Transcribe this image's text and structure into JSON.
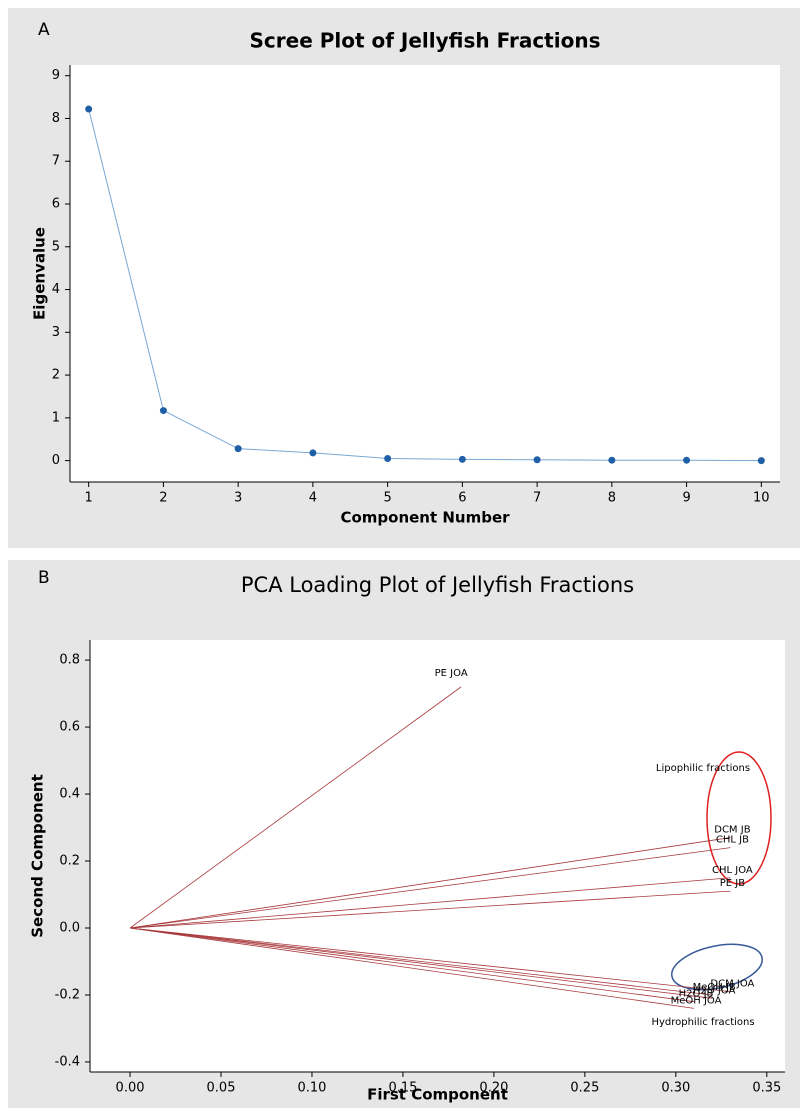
{
  "chart_data": [
    {
      "type": "line",
      "label": "A",
      "title": "Scree Plot of Jellyfish Fractions",
      "x_label": "Component Number",
      "y_label": "Eigenvalue",
      "x": [
        1,
        2,
        3,
        4,
        5,
        6,
        7,
        8,
        9,
        10
      ],
      "values": [
        8.22,
        1.17,
        0.28,
        0.18,
        0.05,
        0.03,
        0.02,
        0.01,
        0.01,
        0.0
      ],
      "color": "#1f5fa6",
      "line_color": "#7aa6d6",
      "xlim": [
        0.75,
        10.25
      ],
      "ylim": [
        -0.5,
        9.25
      ],
      "xticks": [
        1,
        2,
        3,
        4,
        5,
        6,
        7,
        8,
        9,
        10
      ],
      "yticks": [
        0,
        1,
        2,
        3,
        4,
        5,
        6,
        7,
        8,
        9
      ]
    },
    {
      "type": "loading",
      "label": "B",
      "title": "PCA Loading Plot of Jellyfish Fractions",
      "x_label": "First Component",
      "y_label": "Second Component",
      "color": "#a8393c",
      "points": [
        {
          "name": "PE JOA",
          "x": 0.182,
          "y": 0.72
        },
        {
          "name": "DCM JB",
          "x": 0.33,
          "y": 0.27
        },
        {
          "name": "CHL JB",
          "x": 0.33,
          "y": 0.24
        },
        {
          "name": "CHL JOA",
          "x": 0.33,
          "y": 0.15
        },
        {
          "name": "PE JB",
          "x": 0.33,
          "y": 0.11
        },
        {
          "name": "DCM JOA",
          "x": 0.33,
          "y": -0.19
        },
        {
          "name": "MeOH JB",
          "x": 0.32,
          "y": -0.2
        },
        {
          "name": "H2O JOA",
          "x": 0.32,
          "y": -0.21
        },
        {
          "name": "H2O JB",
          "x": 0.31,
          "y": -0.22
        },
        {
          "name": "MeOH JOA",
          "x": 0.31,
          "y": -0.24
        }
      ],
      "annotations": [
        "Lipophilic fractions",
        "Hydrophilic fractions"
      ],
      "xlim": [
        -0.022,
        0.36
      ],
      "ylim": [
        -0.43,
        0.86
      ],
      "xticks": [
        {
          "value": 0,
          "label": "0.00"
        },
        0.05,
        {
          "value": 0.1,
          "label": "0.10"
        },
        0.15,
        {
          "value": 0.2,
          "label": "0.20"
        },
        0.25,
        {
          "value": 0.3,
          "label": "0.30"
        },
        0.35
      ],
      "yticks": [
        -0.4,
        -0.2,
        {
          "value": 0,
          "label": "0.0"
        },
        0.2,
        0.4,
        0.6,
        0.8
      ]
    }
  ]
}
